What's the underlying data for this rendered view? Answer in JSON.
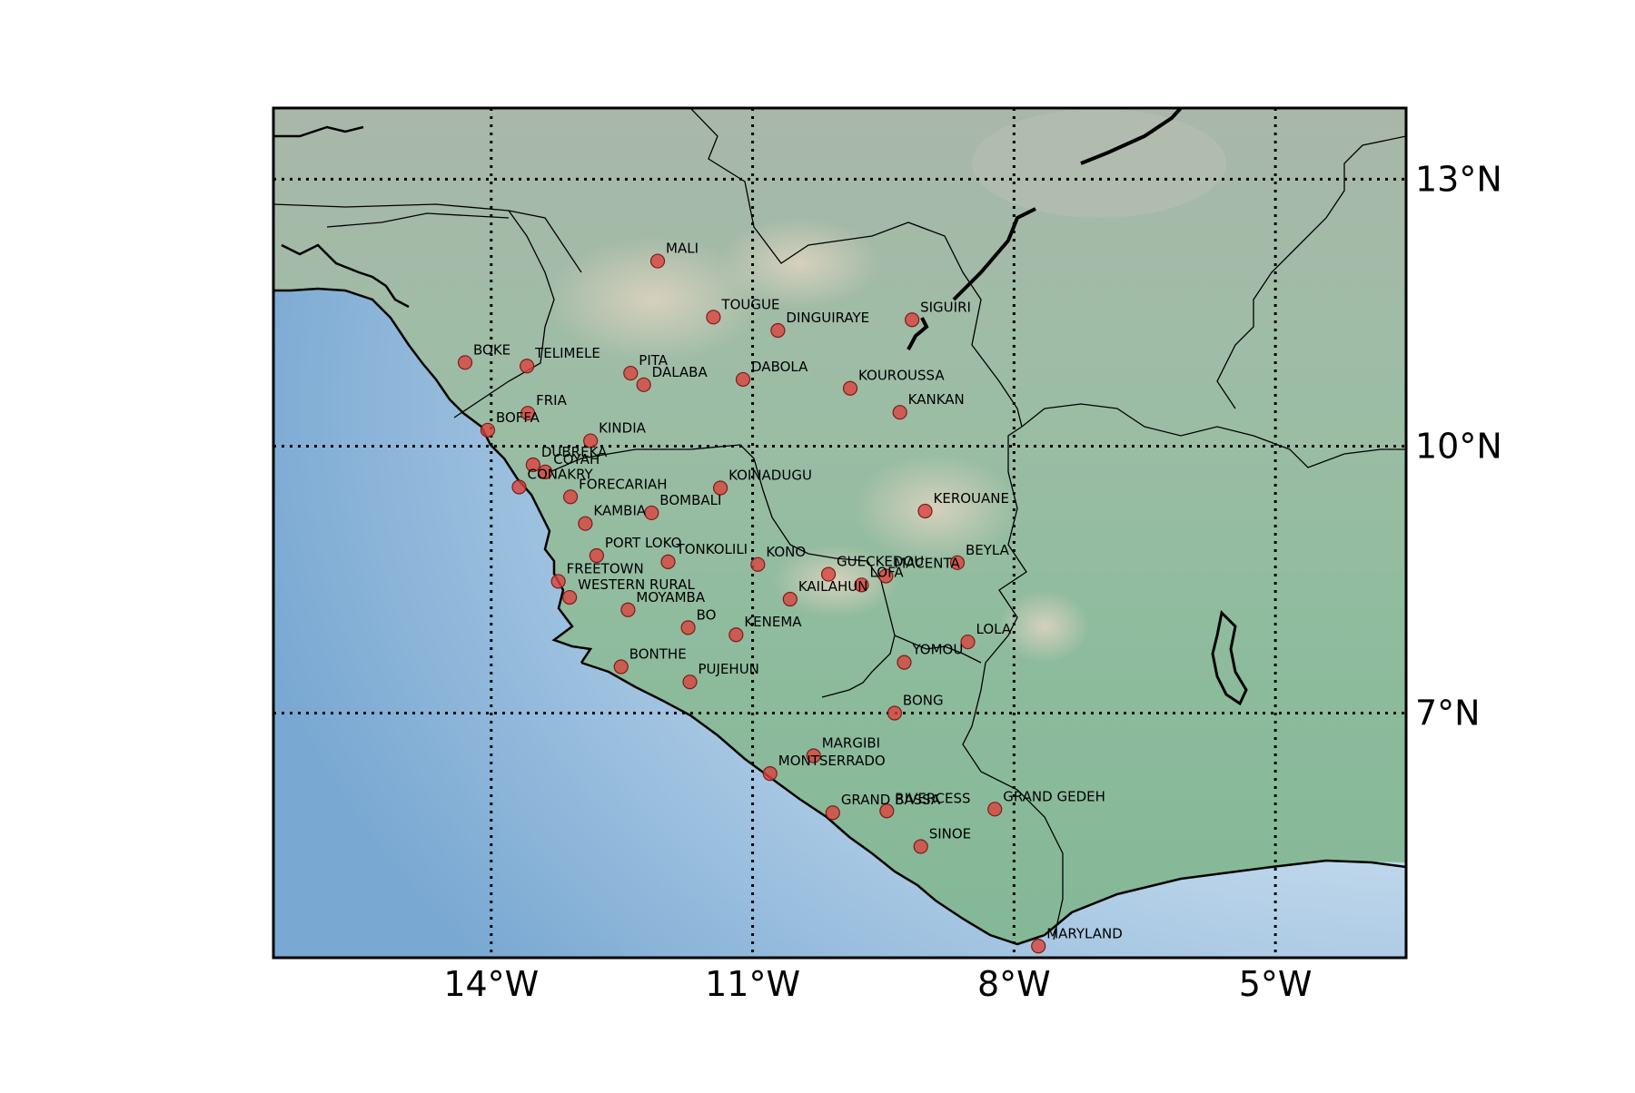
{
  "map": {
    "lon_range": [
      -16.5,
      -3.5
    ],
    "lat_range": [
      4.25,
      13.8
    ],
    "colors": {
      "ocean_deep": "#79a8d2",
      "ocean_light": "#dde9f4",
      "land_low": "#86b99a",
      "land_high": "#d8d2bf",
      "marker": "#d9443f",
      "boundary": "#000000"
    },
    "lon_ticks": [
      {
        "value": -14,
        "label": "14°W"
      },
      {
        "value": -11,
        "label": "11°W"
      },
      {
        "value": -8,
        "label": "8°W"
      },
      {
        "value": -5,
        "label": "5°W"
      }
    ],
    "lat_ticks": [
      {
        "value": 13,
        "label": "13°N"
      },
      {
        "value": 10,
        "label": "10°N"
      },
      {
        "value": 7,
        "label": "7°N"
      }
    ],
    "regions": [
      {
        "name": "MALI",
        "lon": -12.09,
        "lat": 12.08
      },
      {
        "name": "TOUGUE",
        "lon": -11.45,
        "lat": 11.45
      },
      {
        "name": "DINGUIRAYE",
        "lon": -10.71,
        "lat": 11.3
      },
      {
        "name": "SIGUIRI",
        "lon": -9.17,
        "lat": 11.42
      },
      {
        "name": "TELIMELE",
        "lon": -13.59,
        "lat": 10.9
      },
      {
        "name": "PITA",
        "lon": -12.4,
        "lat": 10.82
      },
      {
        "name": "DALABA",
        "lon": -12.25,
        "lat": 10.69
      },
      {
        "name": "BOKE",
        "lon": -14.3,
        "lat": 10.94
      },
      {
        "name": "DABOLA",
        "lon": -11.11,
        "lat": 10.75
      },
      {
        "name": "KOUROUSSA",
        "lon": -9.88,
        "lat": 10.65
      },
      {
        "name": "BOFFA",
        "lon": -14.04,
        "lat": 10.18
      },
      {
        "name": "FRIA",
        "lon": -13.58,
        "lat": 10.37
      },
      {
        "name": "DUBREKA",
        "lon": -13.52,
        "lat": 9.79
      },
      {
        "name": "KANKAN",
        "lon": -9.31,
        "lat": 10.38
      },
      {
        "name": "KINDIA",
        "lon": -12.86,
        "lat": 10.06
      },
      {
        "name": "COYAH",
        "lon": -13.38,
        "lat": 9.71
      },
      {
        "name": "CONAKRY",
        "lon": -13.68,
        "lat": 9.54
      },
      {
        "name": "FORECARIAH",
        "lon": -13.09,
        "lat": 9.43
      },
      {
        "name": "KOINADUGU",
        "lon": -11.37,
        "lat": 9.53
      },
      {
        "name": "BOMBALI",
        "lon": -12.16,
        "lat": 9.25
      },
      {
        "name": "KAMBIA",
        "lon": -12.92,
        "lat": 9.13
      },
      {
        "name": "KEROUANE",
        "lon": -9.02,
        "lat": 9.27
      },
      {
        "name": "BEYLA",
        "lon": -8.65,
        "lat": 8.69
      },
      {
        "name": "PORT LOKO",
        "lon": -12.79,
        "lat": 8.77
      },
      {
        "name": "TONKOLILI",
        "lon": -11.97,
        "lat": 8.7
      },
      {
        "name": "KONO",
        "lon": -10.94,
        "lat": 8.67
      },
      {
        "name": "GUECKEDOU",
        "lon": -10.13,
        "lat": 8.56
      },
      {
        "name": "MACENTA",
        "lon": -9.47,
        "lat": 8.54
      },
      {
        "name": "FREETOWN",
        "lon": -13.23,
        "lat": 8.48
      },
      {
        "name": "LOFA",
        "lon": -9.75,
        "lat": 8.44
      },
      {
        "name": "WESTERN RURAL",
        "lon": -13.1,
        "lat": 8.3
      },
      {
        "name": "KAILAHUN",
        "lon": -10.57,
        "lat": 8.28
      },
      {
        "name": "MOYAMBA",
        "lon": -12.43,
        "lat": 8.16
      },
      {
        "name": "BO",
        "lon": -11.74,
        "lat": 7.96
      },
      {
        "name": "KENEMA",
        "lon": -11.19,
        "lat": 7.88
      },
      {
        "name": "LOLA",
        "lon": -8.53,
        "lat": 7.8
      },
      {
        "name": "BONTHE",
        "lon": -12.51,
        "lat": 7.52
      },
      {
        "name": "YOMOU",
        "lon": -9.26,
        "lat": 7.57
      },
      {
        "name": "PUJEHUN",
        "lon": -11.72,
        "lat": 7.35
      },
      {
        "name": "BONG",
        "lon": -9.37,
        "lat": 7.0
      },
      {
        "name": "MARGIBI",
        "lon": -10.3,
        "lat": 6.52
      },
      {
        "name": "MONTSERRADO",
        "lon": -10.8,
        "lat": 6.32
      },
      {
        "name": "RIVERCESS",
        "lon": -9.46,
        "lat": 5.9
      },
      {
        "name": "GRAND GEDEH",
        "lon": -8.22,
        "lat": 5.92
      },
      {
        "name": "GRAND BASSA",
        "lon": -10.08,
        "lat": 5.88
      },
      {
        "name": "SINOE",
        "lon": -9.07,
        "lat": 5.5
      },
      {
        "name": "MARYLAND",
        "lon": -7.72,
        "lat": 4.38
      }
    ]
  }
}
